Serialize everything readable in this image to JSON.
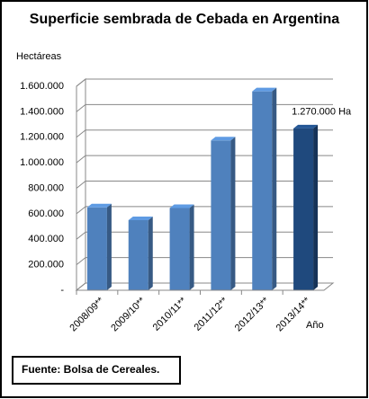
{
  "chart_data": {
    "type": "bar3d",
    "title": "Superficie sembrada de Cebada en Argentina",
    "y_label": "Hectáreas",
    "x_label": "Año",
    "categories": [
      "2008/09**",
      "2009/10**",
      "2010/11**",
      "2011/12**",
      "2012/13**",
      "2013/14**"
    ],
    "values": [
      650000,
      550000,
      645000,
      1175000,
      1560000,
      1270000
    ],
    "value_labels": [
      null,
      null,
      null,
      null,
      null,
      "1.270.000 Ha"
    ],
    "colors": [
      "#4f81bd",
      "#4f81bd",
      "#4f81bd",
      "#4f81bd",
      "#4f81bd",
      "#1f497d"
    ],
    "ylim": [
      0,
      1600000
    ],
    "yticks": [
      {
        "value": 0,
        "label": "-"
      },
      {
        "value": 200000,
        "label": "200.000"
      },
      {
        "value": 400000,
        "label": "400.000"
      },
      {
        "value": 600000,
        "label": "600.000"
      },
      {
        "value": 800000,
        "label": "800.000"
      },
      {
        "value": 1000000,
        "label": "1.000.000"
      },
      {
        "value": 1200000,
        "label": "1.200.000"
      },
      {
        "value": 1400000,
        "label": "1.400.000"
      },
      {
        "value": 1600000,
        "label": "1.600.000"
      }
    ],
    "grid": true,
    "source": "Fuente: Bolsa de Cereales."
  }
}
